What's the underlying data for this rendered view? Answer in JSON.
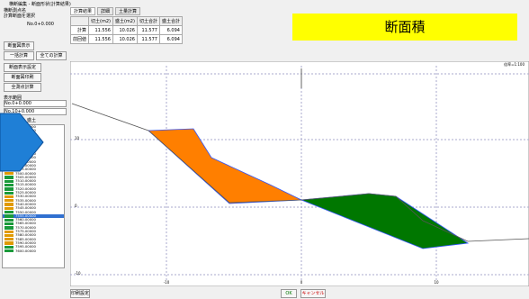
{
  "window_title": "横断編集 - 断面形状(計算結果)",
  "info": {
    "line1": "横断測点名",
    "line2": "計算断面を選択",
    "line3": "No.0+0.000",
    "button1": "断面図表示",
    "button2": "一括計算",
    "button3": "全ての計算"
  },
  "tabs": [
    "計算結果",
    "詳細",
    "土量計算"
  ],
  "table": {
    "headers": [
      "",
      "切土(m2)",
      "盛土(m2)",
      "切土合計",
      "盛土合計"
    ],
    "rows": [
      [
        "計算",
        "11.556",
        "10.026",
        "11.577",
        "6.094"
      ],
      [
        "前回値",
        "11.556",
        "10.026",
        "11.577",
        "6.094"
      ]
    ]
  },
  "banner": "断面積",
  "side": {
    "buttons": [
      "断面表示設定",
      "断面図印刷",
      "全測点計算"
    ],
    "filter_label": "表示範囲",
    "from": "No.0+0.000",
    "to": "No.10+0.000",
    "options": [
      "切土",
      "盛土"
    ]
  },
  "stations": [
    "7440.00000",
    "7445.00000",
    "7450.00000",
    "7455.00000",
    "7460.00000",
    "7465.00000",
    "7470.00000",
    "7475.00000",
    "7480.00000",
    "7485.00000",
    "7490.00000",
    "7495.00000",
    "7500.00000",
    "7505.00000",
    "7510.00000",
    "7515.00000",
    "7520.00000",
    "7525.00000",
    "7530.00000",
    "7535.00000",
    "7540.00000",
    "7545.00000",
    "7550.00000",
    "7555.00000",
    "7560.00000",
    "7565.00000",
    "7570.00000",
    "7575.00000",
    "7580.00000",
    "7585.00000",
    "7590.00000",
    "7595.00000",
    "7600.00000"
  ],
  "chart": {
    "scale_label": "倍率=1:100",
    "x_labels": [
      "-10",
      "0",
      "10"
    ],
    "y_labels": [
      "10",
      "0",
      "-10"
    ]
  },
  "footer": {
    "print": "印刷設定",
    "ok": "OK",
    "cancel": "キャンセル"
  }
}
